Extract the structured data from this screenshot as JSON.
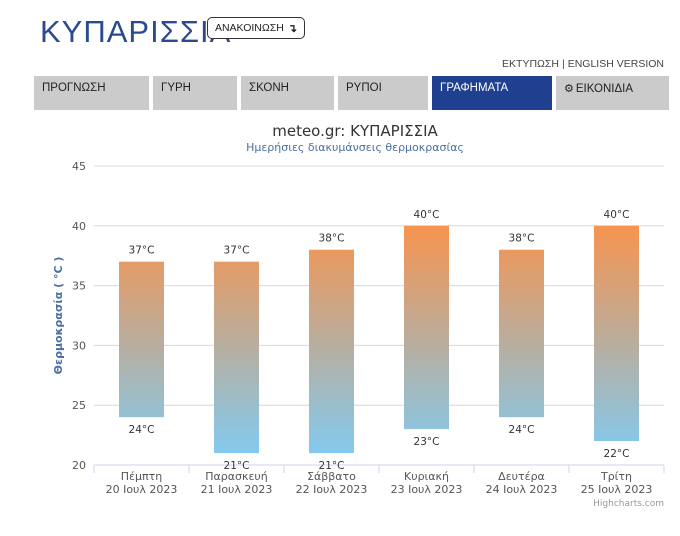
{
  "header": {
    "city": "ΚΥΠΑΡΙΣΣΙΑ",
    "announce_label": "ΑΝΑΚΟΙΝΩΣΗ",
    "announce_icon": "arrow-down-right-icon"
  },
  "top_links": {
    "print": "ΕΚΤΥΠΩΣΗ",
    "separator": "|",
    "english": "ENGLISH VERSION"
  },
  "tabs": [
    {
      "label": "ΠΡΟΓΝΩΣΗ",
      "active": false
    },
    {
      "label": "ΓΥΡΗ",
      "active": false
    },
    {
      "label": "ΣΚΟΝΗ",
      "active": false
    },
    {
      "label": "ΡΥΠΟΙ",
      "active": false
    },
    {
      "label": "ΓΡΑΦΗΜΑΤΑ",
      "active": true
    },
    {
      "label": "ΕΙΚΟΝΙΔΙΑ",
      "active": false,
      "icon": "gear-icon"
    }
  ],
  "chart_data": {
    "type": "bar",
    "title": "meteo.gr: ΚΥΠΑΡΙΣΣΙΑ",
    "subtitle": "Ημερήσιες διακυμάνσεις θερμοκρασίας",
    "ylabel": "Θερμοκρασία ( °C )",
    "ylim": [
      20,
      45
    ],
    "yticks": [
      "20",
      "25",
      "30",
      "35",
      "40",
      "45"
    ],
    "categories": [
      [
        "Πέμπτη",
        "20 Ιουλ 2023"
      ],
      [
        "Παρασκευή",
        "21 Ιουλ 2023"
      ],
      [
        "Σάββατο",
        "22 Ιουλ 2023"
      ],
      [
        "Κυριακή",
        "23 Ιουλ 2023"
      ],
      [
        "Δευτέρα",
        "24 Ιουλ 2023"
      ],
      [
        "Τρίτη",
        "25 Ιουλ 2023"
      ]
    ],
    "low": [
      24,
      21,
      21,
      23,
      24,
      22
    ],
    "high": [
      37,
      37,
      38,
      40,
      38,
      40
    ],
    "high_labels": [
      "37°C",
      "37°C",
      "38°C",
      "40°C",
      "38°C",
      "40°C"
    ],
    "low_labels": [
      "24°C",
      "21°C",
      "21°C",
      "23°C",
      "24°C",
      "22°C"
    ],
    "grid": true,
    "colors": {
      "top": "#f7944f",
      "bottom": "#7dcdf7",
      "title": "#2a4b8d",
      "axis_label": "#4a6fa5"
    },
    "credits": "Highcharts.com"
  }
}
